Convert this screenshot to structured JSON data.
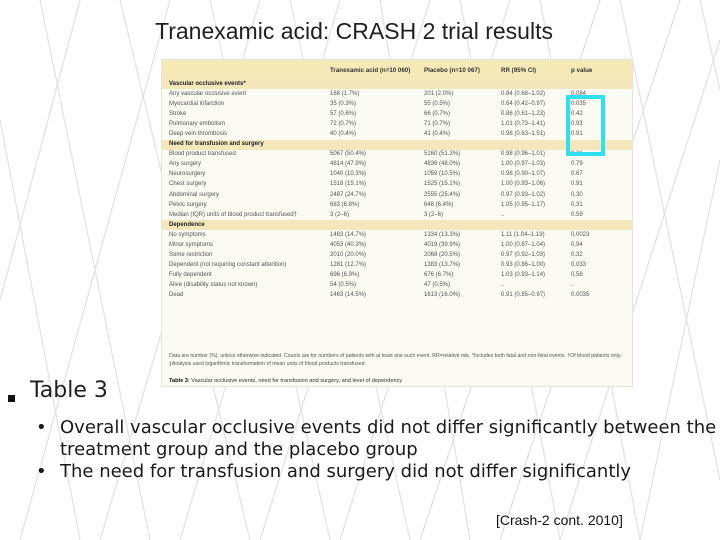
{
  "slide": {
    "title": "Tranexamic acid: CRASH 2 trial results",
    "section_label": "Table 3",
    "bullets": [
      "Overall vascular occlusive events did not differ significantly between the treatment group and the placebo group",
      "The need for transfusion and surgery did not differ significantly"
    ],
    "citation": "[Crash-2 cont. 2010]",
    "bullet_glyph": "•"
  },
  "table": {
    "headers": [
      "Tranexamic acid (n=10 060)",
      "Placebo (n=10 067)",
      "RR (95% CI)",
      "p value"
    ],
    "rows": [
      {
        "type": "section",
        "label": "Vascular occlusive events*"
      },
      {
        "type": "data",
        "cells": [
          "Any vascular occlusive event",
          "168 (1.7%)",
          "201 (2.0%)",
          "0.84 (0.68–1.02)",
          "0.084"
        ]
      },
      {
        "type": "data",
        "cells": [
          "Myocardial infarction",
          "35 (0.3%)",
          "55 (0.5%)",
          "0.64 (0.42–0.97)",
          "0.035"
        ]
      },
      {
        "type": "data",
        "cells": [
          "Stroke",
          "57 (0.6%)",
          "66 (0.7%)",
          "0.86 (0.61–1.23)",
          "0.42"
        ]
      },
      {
        "type": "data",
        "cells": [
          "Pulmonary embolism",
          "72 (0.7%)",
          "71 (0.7%)",
          "1.01 (0.73–1.41)",
          "0.93"
        ]
      },
      {
        "type": "data",
        "cells": [
          "Deep vein thrombosis",
          "40 (0.4%)",
          "41 (0.4%)",
          "0.98 (0.63–1.51)",
          "0.91"
        ]
      },
      {
        "type": "section",
        "label": "Need for transfusion and surgery"
      },
      {
        "type": "data",
        "cells": [
          "Blood product transfused",
          "5067 (50.4%)",
          "5160 (51.3%)",
          "0.98 (0.96–1.01)",
          "0.21"
        ]
      },
      {
        "type": "data",
        "cells": [
          "Any surgery",
          "4814 (47.9%)",
          "4836 (48.0%)",
          "1.00 (0.97–1.03)",
          "0.79"
        ]
      },
      {
        "type": "data",
        "cells": [
          "Neurosurgery",
          "1040 (10.3%)",
          "1059 (10.5%)",
          "0.98 (0.90–1.07)",
          "0.67"
        ]
      },
      {
        "type": "data",
        "cells": [
          "Chest surgery",
          "1518 (15.1%)",
          "1525 (15.1%)",
          "1.00 (0.93–1.06)",
          "0.91"
        ]
      },
      {
        "type": "data",
        "cells": [
          "Abdominal surgery",
          "2487 (24.7%)",
          "2555 (25.4%)",
          "0.97 (0.93–1.02)",
          "0.30"
        ]
      },
      {
        "type": "data",
        "cells": [
          "Pelvic surgery",
          "683 (6.8%)",
          "648 (6.4%)",
          "1.05 (0.95–1.17)",
          "0.31"
        ]
      },
      {
        "type": "data",
        "cells": [
          "Median (IQR) units of blood product transfused†",
          "3 (2–6)",
          "3 (2–6)",
          "..",
          "0.59"
        ]
      },
      {
        "type": "section",
        "label": "Dependence"
      },
      {
        "type": "data",
        "cells": [
          "No symptoms",
          "1483 (14.7%)",
          "1334 (13.3%)",
          "1.11 (1.04–1.19)",
          "0.0023"
        ]
      },
      {
        "type": "data",
        "cells": [
          "Minor symptoms",
          "4053 (40.3%)",
          "4019 (39.9%)",
          "1.00 (0.97–1.04)",
          "0.94"
        ]
      },
      {
        "type": "data",
        "cells": [
          "Some restriction",
          "2010 (20.0%)",
          "2068 (20.5%)",
          "0.97 (0.92–1.03)",
          "0.32"
        ]
      },
      {
        "type": "data",
        "cells": [
          "Dependent (not requiring constant attention)",
          "1281 (12.7%)",
          "1383 (13.7%)",
          "0.93 (0.86–1.00)",
          "0.033"
        ]
      },
      {
        "type": "data",
        "cells": [
          "Fully dependent",
          "696 (6.9%)",
          "676 (6.7%)",
          "1.03 (0.93–1.14)",
          "0.58"
        ]
      },
      {
        "type": "data",
        "cells": [
          "Alive (disability status not known)",
          "54 (0.5%)",
          "47 (0.5%)",
          "..",
          ".."
        ]
      },
      {
        "type": "data",
        "cells": [
          "Dead",
          "1463 (14.5%)",
          "1613 (16.0%)",
          "0.91 (0.85–0.97)",
          "0.0035"
        ]
      }
    ],
    "footer": "Data are number (%), unless otherwise indicated. Counts are for numbers of patients with at least one such event. RR=relative risk. *Includes both fatal and non-fatal events. †Of blood patients only. ‡Analysis used logarithmic transformation of mean units of blood products transfused.",
    "caption_bold": "Table 3:",
    "caption_text": " Vascular occlusive events, need for transfusion and surgery, and level of dependency"
  },
  "colors": {
    "highlight": "#2fe0f0",
    "table_header_bg": "#f6e9b8",
    "section_bg": "#f3e7bb"
  }
}
